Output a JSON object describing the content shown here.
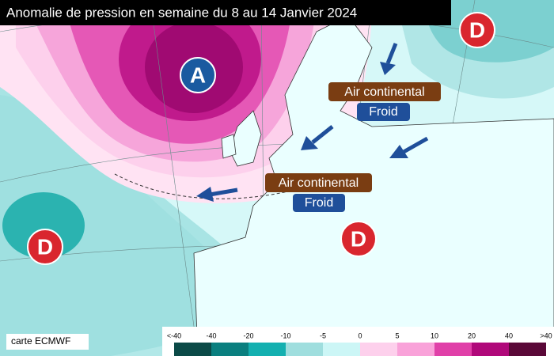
{
  "title": "Anomalie de pression en semaine du 8 au 14 Janvier 2024",
  "centers": [
    {
      "label": "A"
    },
    {
      "label": "D"
    },
    {
      "label": "D"
    },
    {
      "label": "D"
    }
  ],
  "annotations": [
    {
      "airmass": "Air continental",
      "temperature": "Froid"
    },
    {
      "airmass": "Air continental",
      "temperature": "Froid"
    }
  ],
  "source": "carte ECMWF",
  "legend": {
    "ticks": [
      "<-40",
      -40,
      -20,
      -10,
      -5,
      0,
      5,
      10,
      20,
      40,
      ">40"
    ],
    "colors": [
      "#0b4a47",
      "#0a7f7f",
      "#14b0b0",
      "#9fdede",
      "#ccf6f6",
      "#fdd0ec",
      "#f9a2d9",
      "#e040a8",
      "#b0087a",
      "#5a0838"
    ]
  }
}
